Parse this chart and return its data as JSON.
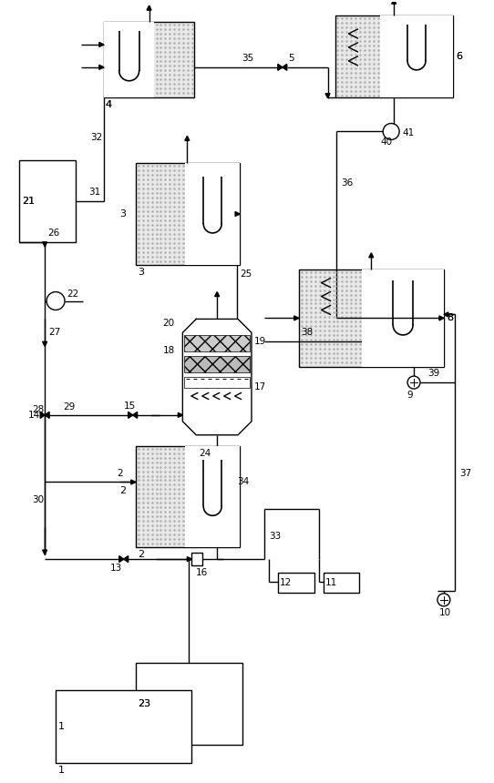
{
  "bg_color": "#ffffff",
  "lc": "#000000",
  "lw": 1.0,
  "fig_width": 5.42,
  "fig_height": 8.6,
  "dpi": 100,
  "dot_fc": "#e8e8e8",
  "dot_color": "#aaaaaa"
}
